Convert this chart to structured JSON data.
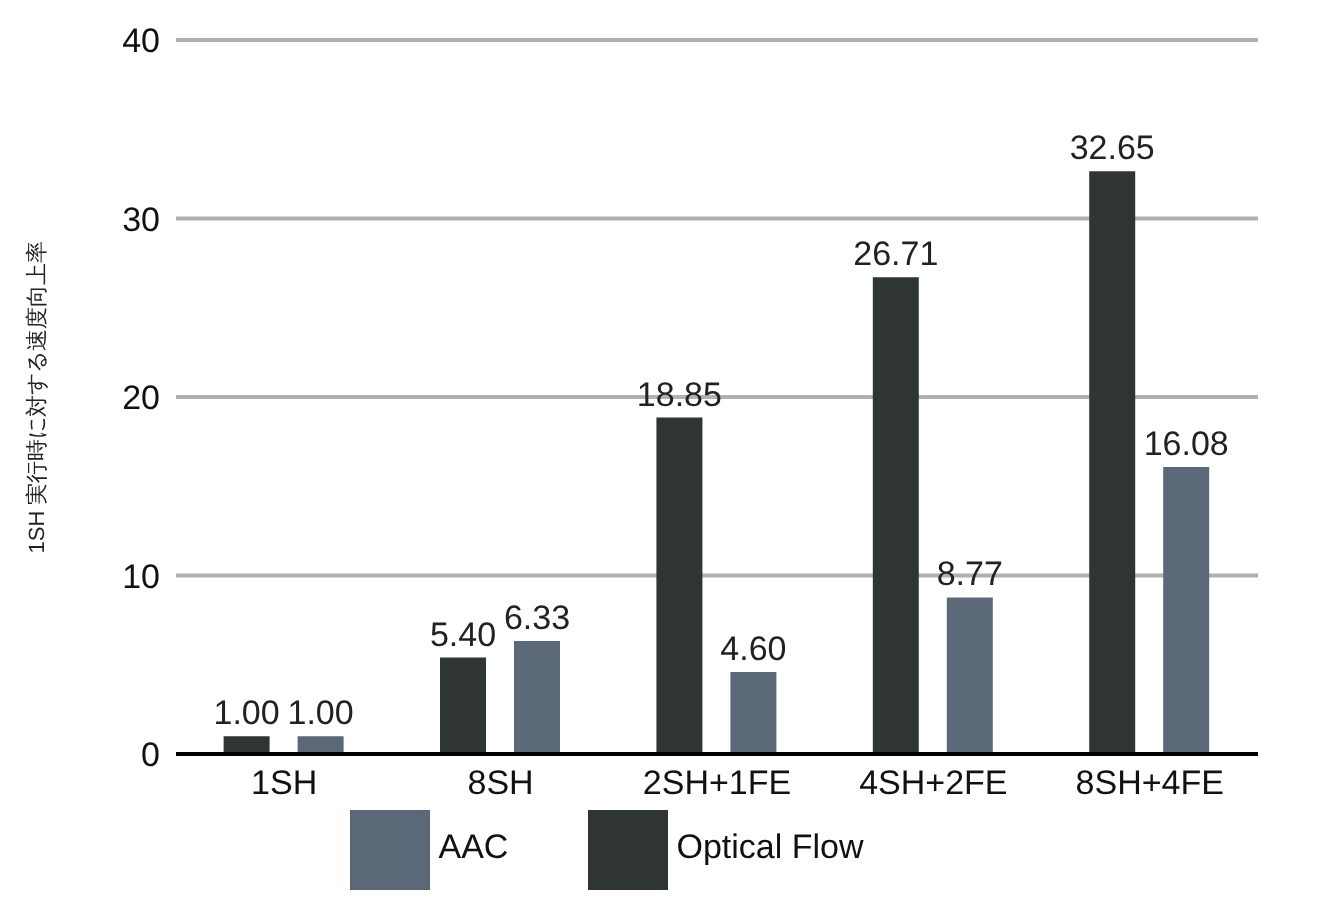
{
  "chart_data": {
    "type": "bar",
    "ylabel": "1SH 実行時に対する速度向上率",
    "categories": [
      "1SH",
      "8SH",
      "2SH+1FE",
      "4SH+2FE",
      "8SH+4FE"
    ],
    "series": [
      {
        "name": "Optical Flow",
        "color": "#2f3535",
        "values": [
          1.0,
          5.4,
          18.85,
          26.71,
          32.65
        ],
        "value_labels": [
          "1.00",
          "5.40",
          "18.85",
          "26.71",
          "32.65"
        ]
      },
      {
        "name": "AAC",
        "color": "#5a6878",
        "values": [
          1.0,
          6.33,
          4.6,
          8.77,
          16.08
        ],
        "value_labels": [
          "1.00",
          "6.33",
          "4.60",
          "8.77",
          "16.08"
        ]
      }
    ],
    "ylim": [
      0,
      40
    ],
    "yticks": [
      0,
      10,
      20,
      30,
      40
    ],
    "grid": "y",
    "legend": "bottom"
  }
}
